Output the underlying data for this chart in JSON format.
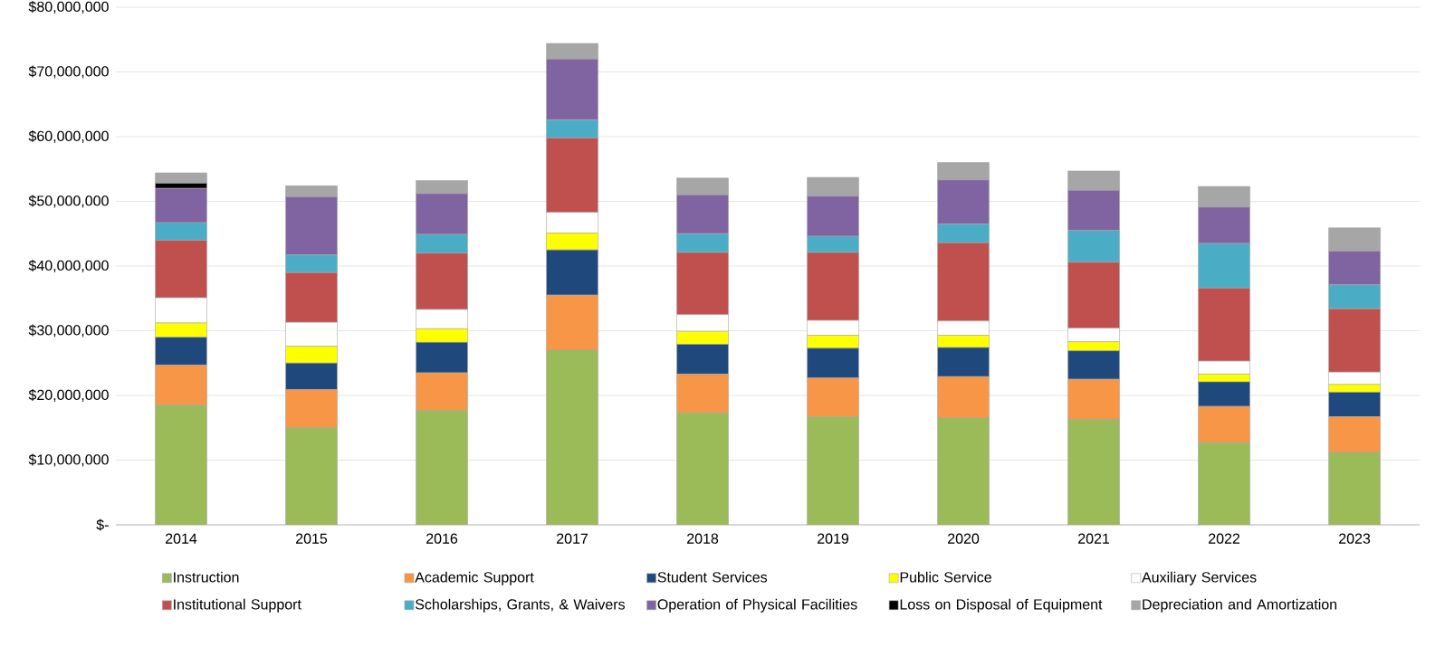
{
  "chart_data": {
    "type": "bar",
    "stacked": true,
    "grid": "y",
    "legend": "bottom",
    "categories": [
      "2014",
      "2015",
      "2016",
      "2017",
      "2018",
      "2019",
      "2020",
      "2021",
      "2022",
      "2023"
    ],
    "ylim": [
      0,
      80000000
    ],
    "yticks": [
      {
        "value": 0,
        "label": "$-"
      },
      {
        "value": 10000000,
        "label": "$10,000,000"
      },
      {
        "value": 20000000,
        "label": "$20,000,000"
      },
      {
        "value": 30000000,
        "label": "$30,000,000"
      },
      {
        "value": 40000000,
        "label": "$40,000,000"
      },
      {
        "value": 50000000,
        "label": "$50,000,000"
      },
      {
        "value": 60000000,
        "label": "$60,000,000"
      },
      {
        "value": 70000000,
        "label": "$70,000,000"
      },
      {
        "value": 80000000,
        "label": "$80,000,000"
      }
    ],
    "series": [
      {
        "name": "Instruction",
        "color": "#9bbb59",
        "values": [
          18500000,
          15000000,
          17700000,
          27000000,
          17300000,
          16700000,
          16500000,
          16300000,
          12700000,
          11200000
        ]
      },
      {
        "name": "Academic Support",
        "color": "#f79646",
        "values": [
          6200000,
          5900000,
          5800000,
          8500000,
          6000000,
          6000000,
          6400000,
          6200000,
          5600000,
          5500000
        ]
      },
      {
        "name": "Student Services",
        "color": "#1f497d",
        "values": [
          4300000,
          4100000,
          4700000,
          7000000,
          4600000,
          4600000,
          4500000,
          4400000,
          3800000,
          3800000
        ]
      },
      {
        "name": "Public Service",
        "color": "#ffff00",
        "values": [
          2200000,
          2600000,
          2100000,
          2600000,
          2000000,
          2000000,
          1900000,
          1400000,
          1200000,
          1200000
        ]
      },
      {
        "name": "Auxiliary Services",
        "color": "#ffffff",
        "values": [
          3900000,
          3700000,
          3000000,
          3200000,
          2600000,
          2300000,
          2200000,
          2100000,
          2000000,
          1900000
        ]
      },
      {
        "name": "Institutional Support",
        "color": "#c0504d",
        "values": [
          8900000,
          7700000,
          8700000,
          11500000,
          9600000,
          10500000,
          12100000,
          10200000,
          11300000,
          9800000
        ]
      },
      {
        "name": "Scholarships, Grants, & Waivers",
        "color": "#4bacc6",
        "values": [
          2700000,
          2700000,
          2900000,
          2800000,
          2900000,
          2500000,
          2900000,
          4900000,
          6900000,
          3700000
        ]
      },
      {
        "name": "Operation of Physical Facilities",
        "color": "#8064a2",
        "values": [
          5300000,
          9000000,
          6300000,
          9400000,
          6000000,
          6200000,
          6800000,
          6200000,
          5600000,
          5200000
        ]
      },
      {
        "name": "Loss on Disposal of Equipment",
        "color": "#000000",
        "values": [
          800000,
          0,
          0,
          0,
          0,
          0,
          0,
          0,
          0,
          0
        ]
      },
      {
        "name": "Depreciation and Amortization",
        "color": "#a6a6a6",
        "values": [
          1600000,
          1700000,
          2000000,
          2400000,
          2600000,
          2900000,
          2700000,
          3000000,
          3200000,
          3600000
        ]
      }
    ]
  }
}
